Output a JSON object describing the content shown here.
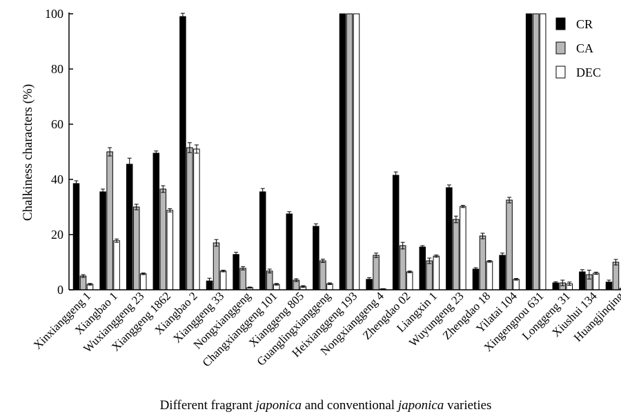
{
  "chart_data": {
    "type": "bar",
    "title": "",
    "ylabel": "Chalkiness characters (%)",
    "xlabel_parts": [
      {
        "text": "Different fragrant ",
        "italic": false
      },
      {
        "text": "japonica",
        "italic": true
      },
      {
        "text": " and conventional ",
        "italic": false
      },
      {
        "text": "japonica",
        "italic": true
      },
      {
        "text": " varieties",
        "italic": false
      }
    ],
    "ylim": [
      0,
      100
    ],
    "yticks": [
      "0",
      "20",
      "40",
      "60",
      "80",
      "100"
    ],
    "grid": false,
    "legend_position": "top-right",
    "categories": [
      "Xinxianggeng 1",
      "Xiangbao 1",
      "Wuxianggeng 23",
      "Xianggeng 1862",
      "Xiangbao 2",
      "Xianggeng 33",
      "Nongxianggeng",
      "Changxianggeng 101",
      "Xianggeng 805",
      "Guanglingxianggeng",
      "Heixianggeng 193",
      "Nongxianggeng 4",
      "Zhengdao 02",
      "Liangxin 1",
      "Wuyungeng 23",
      "Zhengdao 18",
      "Yilatai 104",
      "Xingengnou 631",
      "Longgeng 31",
      "Xiushui 134",
      "Huangjinqing"
    ],
    "series": [
      {
        "name": "CR",
        "color": "#000000",
        "values": [
          38.5,
          35.5,
          45.5,
          49.5,
          99,
          3.2,
          12.8,
          35.5,
          27.5,
          23,
          100,
          3.8,
          41.5,
          15.5,
          37,
          7.5,
          12.5,
          100,
          2.5,
          6.5,
          2.8
        ],
        "errors": [
          1.0,
          1.0,
          2.2,
          0.8,
          1.2,
          1.0,
          0.8,
          1.2,
          0.8,
          0.9,
          0,
          0.6,
          1.2,
          0.5,
          1.0,
          0.5,
          0.8,
          0,
          0.4,
          0.8,
          0.7
        ]
      },
      {
        "name": "CA",
        "color": "#b8b8b8",
        "values": [
          5,
          50,
          30,
          36.5,
          51.5,
          17,
          7.8,
          6.8,
          3.5,
          10.5,
          100,
          12.5,
          16,
          10.5,
          25.5,
          19.5,
          32.5,
          100,
          2.5,
          5.5,
          10
        ],
        "errors": [
          0.5,
          1.5,
          1.0,
          1.2,
          1.8,
          1.2,
          0.6,
          0.7,
          0.5,
          0.6,
          0,
          0.8,
          1.2,
          1.0,
          1.2,
          1.0,
          1.0,
          0,
          1.0,
          1.6,
          1.0
        ]
      },
      {
        "name": "DEC",
        "color": "#ffffff",
        "values": [
          2,
          17.8,
          5.8,
          28.8,
          51,
          6.8,
          0.8,
          2,
          1.2,
          2.2,
          100,
          0.3,
          6.5,
          12.2,
          30.2,
          10.3,
          3.8,
          100,
          2.2,
          6,
          0.5
        ],
        "errors": [
          0.3,
          0.6,
          0.3,
          0.6,
          1.5,
          0.3,
          0.2,
          0.3,
          0.3,
          0.3,
          0,
          0.1,
          0.3,
          0.4,
          0.4,
          0.3,
          0.3,
          0,
          0.6,
          0.4,
          0.2
        ]
      }
    ]
  }
}
